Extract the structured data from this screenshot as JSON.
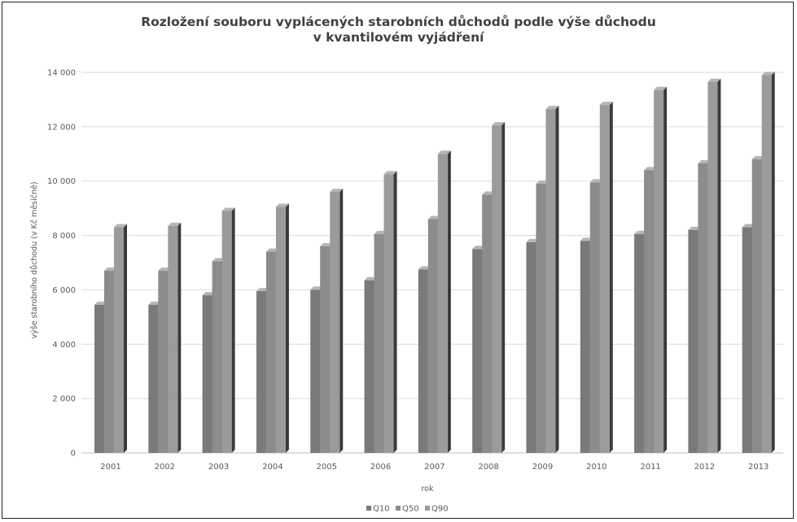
{
  "chart_data": {
    "type": "bar",
    "title_line1": "Rozložení souboru vyplácených starobních důchodů podle výše důchodu",
    "title_line2": "v kvantilovém vyjádření",
    "xlabel": "rok",
    "ylabel": "výše starobního důchodu (v Kč měsíčně)",
    "categories": [
      "2001",
      "2002",
      "2003",
      "2004",
      "2005",
      "2006",
      "2007",
      "2008",
      "2009",
      "2010",
      "2011",
      "2012",
      "2013"
    ],
    "series": [
      {
        "name": "Q10",
        "color": "#7a7a7a",
        "values": [
          5450,
          5450,
          5800,
          5950,
          6000,
          6350,
          6750,
          7500,
          7750,
          7800,
          8050,
          8200,
          8300
        ]
      },
      {
        "name": "Q50",
        "color": "#8c8c8c",
        "values": [
          6700,
          6700,
          7050,
          7400,
          7600,
          8050,
          8600,
          9500,
          9900,
          9950,
          10400,
          10650,
          10800
        ]
      },
      {
        "name": "Q90",
        "color": "#9b9b9b",
        "values": [
          8300,
          8350,
          8900,
          9050,
          9600,
          10250,
          11000,
          12050,
          12650,
          12800,
          13350,
          13650,
          13900
        ]
      }
    ],
    "yticks": [
      "0",
      "2 000",
      "4 000",
      "6 000",
      "8 000",
      "10 000",
      "12 000",
      "14 000"
    ],
    "ylim": [
      0,
      14000
    ],
    "grid": true,
    "legend_position": "bottom"
  }
}
